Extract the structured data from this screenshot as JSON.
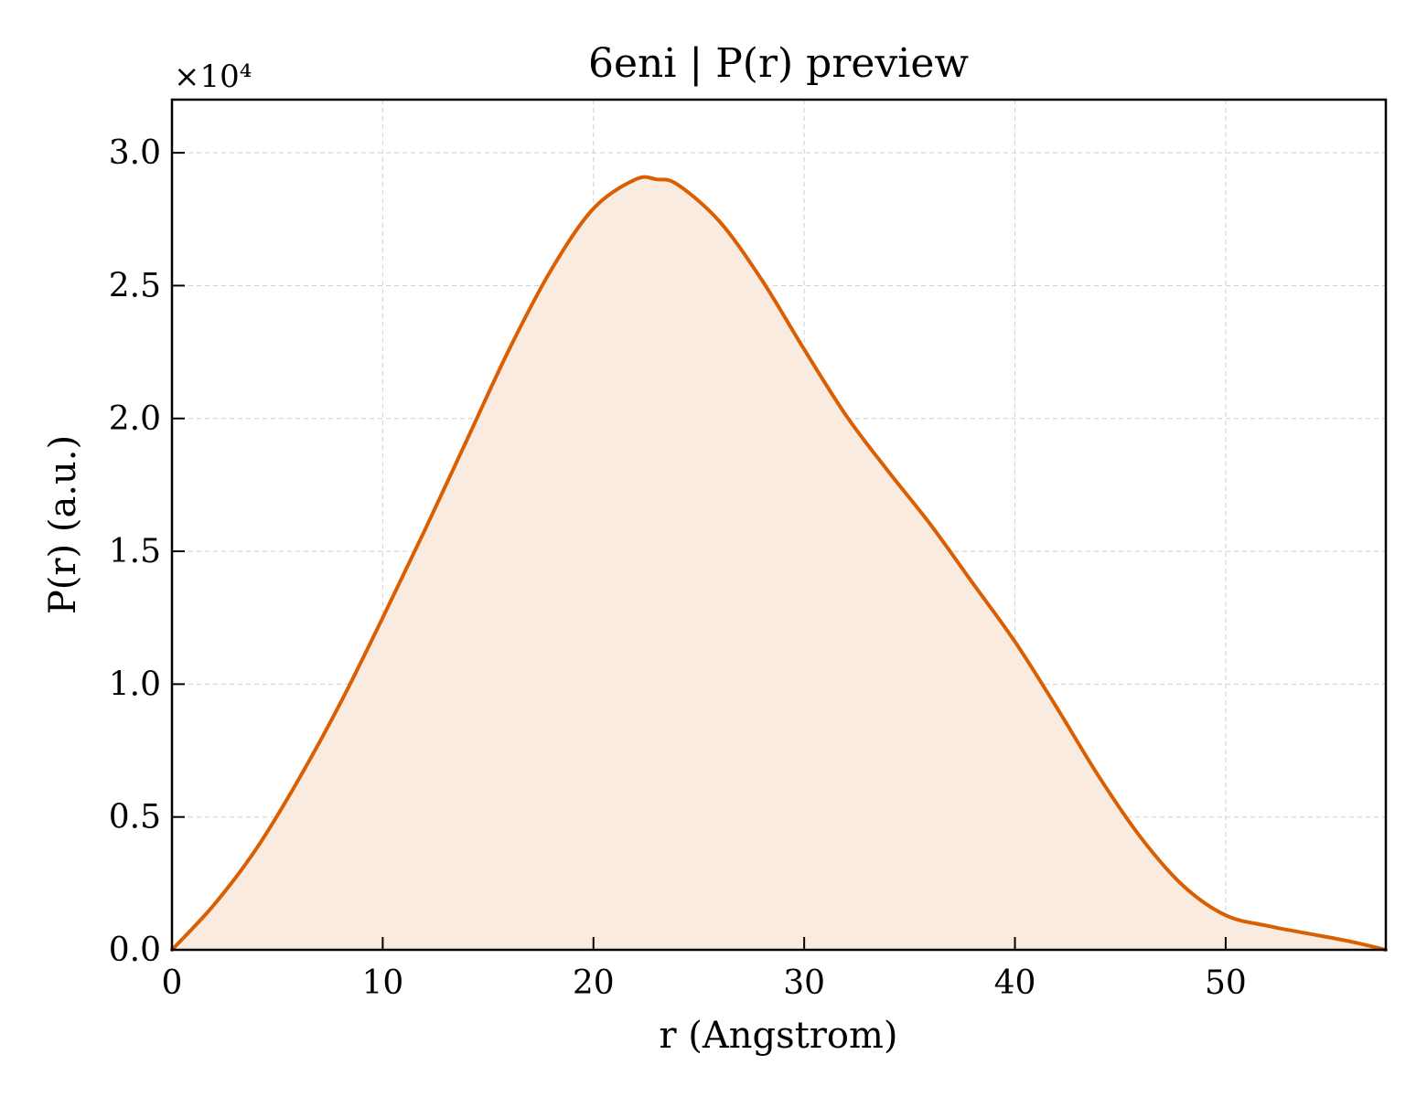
{
  "chart_data": {
    "type": "area",
    "title": "6eni | P(r) preview",
    "xlabel": "r (Angstrom)",
    "ylabel": "P(r) (a.u.)",
    "y_scale_label": "×10⁴",
    "y_multiplier": 10000,
    "xlim": [
      0,
      57.6
    ],
    "ylim": [
      0,
      3.2
    ],
    "x_ticks": [
      0,
      10,
      20,
      30,
      40,
      50
    ],
    "x_tick_labels": [
      "0",
      "10",
      "20",
      "30",
      "40",
      "50"
    ],
    "y_ticks": [
      0,
      0.5,
      1.0,
      1.5,
      2.0,
      2.5,
      3.0
    ],
    "y_tick_labels": [
      "0.0",
      "0.5",
      "1.0",
      "1.5",
      "2.0",
      "2.5",
      "3.0"
    ],
    "grid": true,
    "line_color": "#d95f02",
    "fill_color": "#f9ebe0",
    "series": [
      {
        "x": [
          0,
          2,
          4,
          6,
          8,
          10,
          12,
          14,
          16,
          18,
          20,
          22,
          23,
          24,
          26,
          28,
          30,
          32,
          34,
          36,
          38,
          40,
          42,
          44,
          46,
          48,
          50,
          52,
          54,
          56,
          57.6
        ],
        "y": [
          0,
          0.17,
          0.38,
          0.64,
          0.93,
          1.25,
          1.58,
          1.92,
          2.26,
          2.56,
          2.79,
          2.9,
          2.9,
          2.88,
          2.74,
          2.52,
          2.26,
          2.01,
          1.8,
          1.6,
          1.38,
          1.16,
          0.91,
          0.65,
          0.42,
          0.24,
          0.13,
          0.09,
          0.06,
          0.03,
          0
        ]
      }
    ]
  }
}
